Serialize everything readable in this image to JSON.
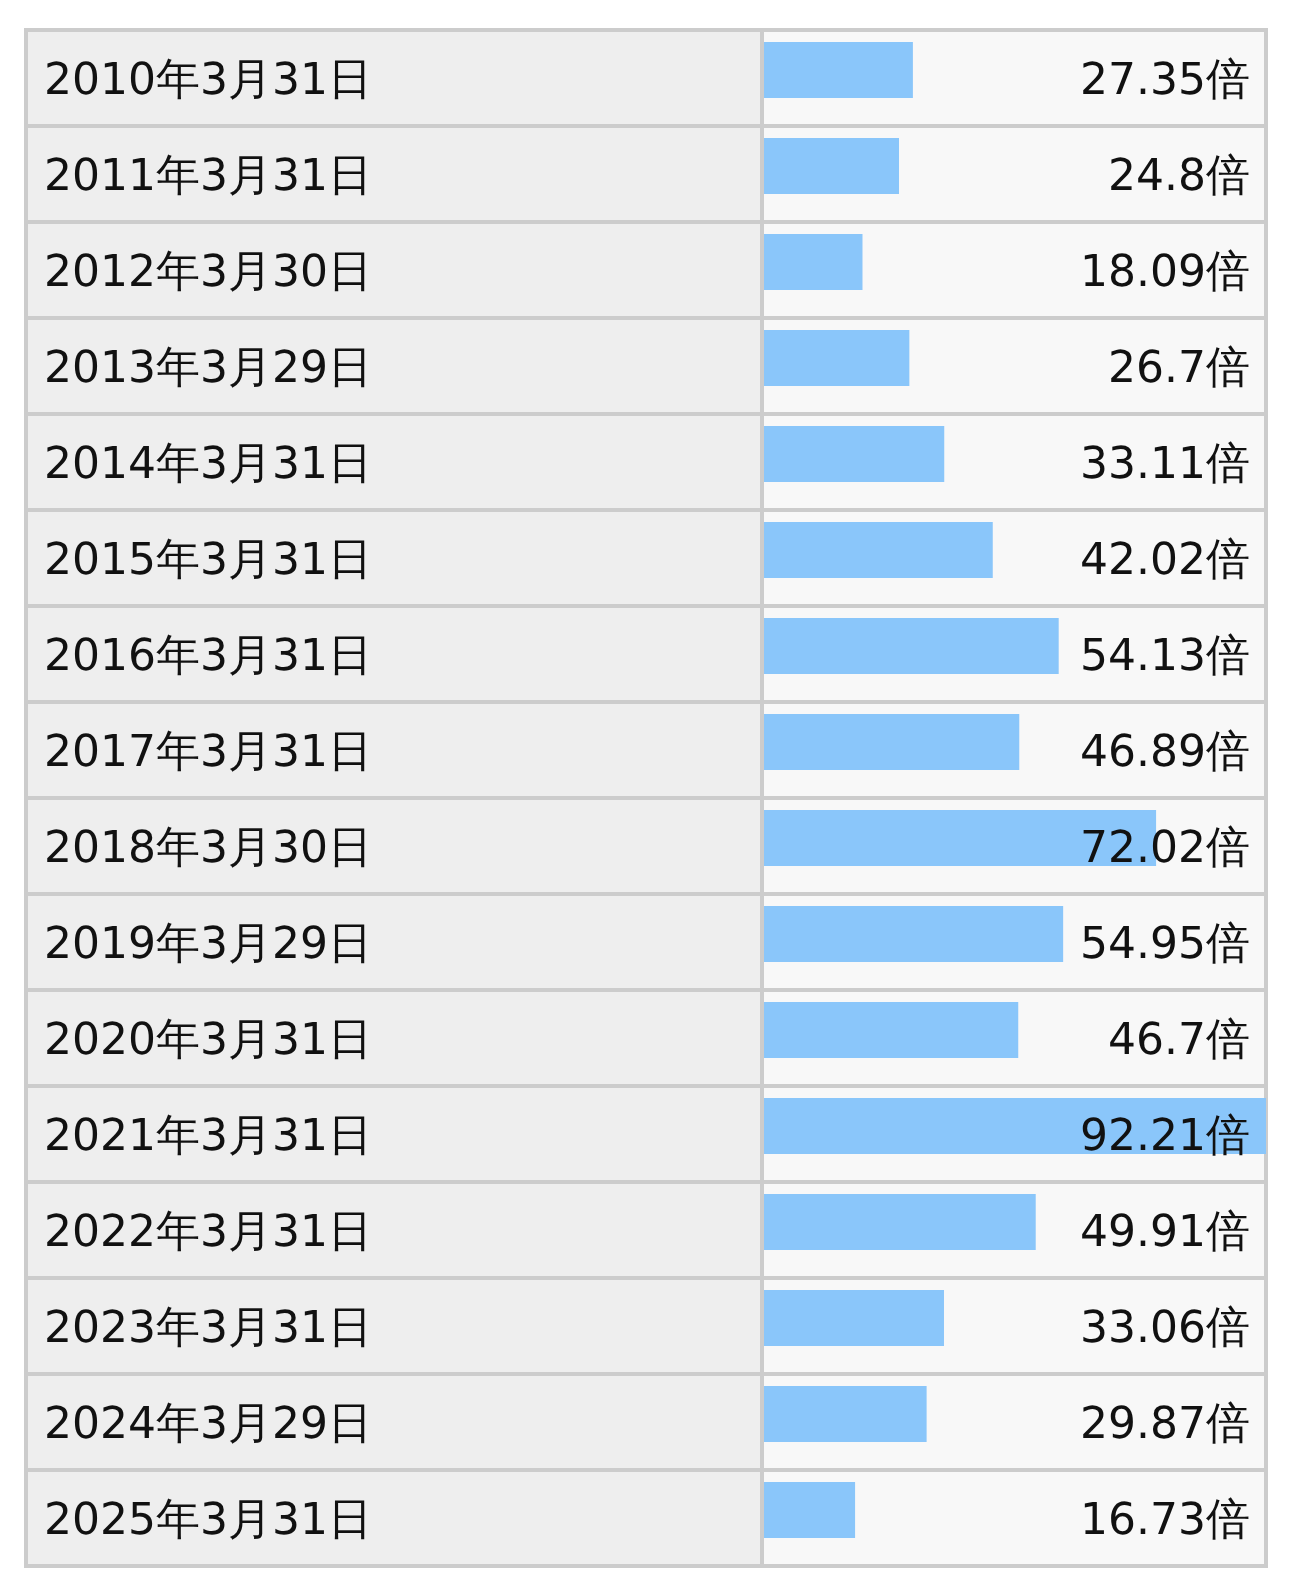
{
  "chart_data": {
    "type": "bar",
    "orientation": "horizontal",
    "color": "#8ac6fa",
    "categories": [
      "2010年3月31日",
      "2011年3月31日",
      "2012年3月30日",
      "2013年3月29日",
      "2014年3月31日",
      "2015年3月31日",
      "2016年3月31日",
      "2017年3月31日",
      "2018年3月30日",
      "2019年3月29日",
      "2020年3月31日",
      "2021年3月31日",
      "2022年3月31日",
      "2023年3月31日",
      "2024年3月29日",
      "2025年3月31日"
    ],
    "values": [
      27.35,
      24.8,
      18.09,
      26.7,
      33.11,
      42.02,
      54.13,
      46.89,
      72.02,
      54.95,
      46.7,
      92.21,
      49.91,
      33.06,
      29.87,
      16.73
    ],
    "value_labels": [
      "27.35倍",
      "24.8倍",
      "18.09倍",
      "26.7倍",
      "33.11倍",
      "42.02倍",
      "54.13倍",
      "46.89倍",
      "72.02倍",
      "54.95倍",
      "46.7倍",
      "92.21倍",
      "49.91倍",
      "33.06倍",
      "29.87倍",
      "16.73倍"
    ]
  }
}
